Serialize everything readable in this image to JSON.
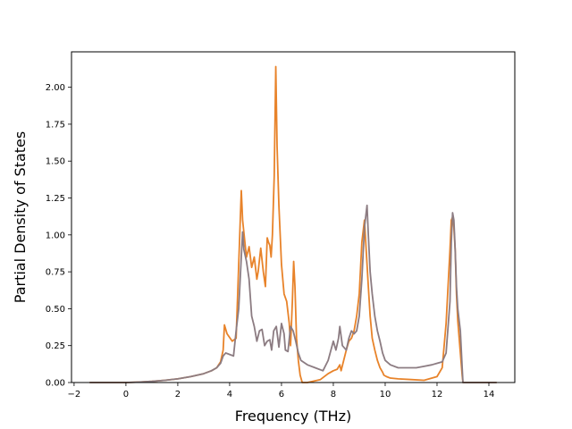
{
  "chart_data": {
    "type": "line",
    "title": "",
    "xlabel": "Frequency (THz)",
    "ylabel": "Partial Density of States",
    "xlim": [
      -2.1,
      15.0
    ],
    "ylim": [
      0.0,
      2.24
    ],
    "xticks": [
      -2,
      0,
      2,
      4,
      6,
      8,
      10,
      12,
      14
    ],
    "xtick_labels": [
      "−2",
      "0",
      "2",
      "4",
      "6",
      "8",
      "10",
      "12",
      "14"
    ],
    "yticks": [
      0.0,
      0.25,
      0.5,
      0.75,
      1.0,
      1.25,
      1.5,
      1.75,
      2.0
    ],
    "ytick_labels": [
      "0.00",
      "0.25",
      "0.50",
      "0.75",
      "1.00",
      "1.25",
      "1.50",
      "1.75",
      "2.00"
    ],
    "grid": false,
    "legend": false,
    "series": [
      {
        "color": "#e8832a",
        "x": [
          -1.4,
          0,
          0.5,
          1,
          1.5,
          2,
          2.5,
          3,
          3.3,
          3.5,
          3.65,
          3.75,
          3.8,
          3.9,
          4.1,
          4.25,
          4.35,
          4.45,
          4.5,
          4.6,
          4.65,
          4.75,
          4.85,
          4.95,
          5.05,
          5.1,
          5.2,
          5.3,
          5.38,
          5.45,
          5.5,
          5.55,
          5.6,
          5.65,
          5.72,
          5.78,
          5.83,
          5.9,
          6.0,
          6.1,
          6.2,
          6.3,
          6.35,
          6.42,
          6.47,
          6.52,
          6.58,
          6.65,
          6.72,
          6.8,
          7.0,
          7.5,
          7.8,
          8.0,
          8.15,
          8.25,
          8.3,
          8.4,
          8.5,
          8.6,
          8.7,
          8.8,
          8.9,
          9.0,
          9.1,
          9.2,
          9.3,
          9.35,
          9.42,
          9.5,
          9.6,
          9.7,
          9.8,
          9.9,
          9.95,
          10.05,
          10.2,
          10.5,
          11,
          11.5,
          12,
          12.2,
          12.35,
          12.5,
          12.55,
          12.6,
          12.65,
          12.7,
          12.75,
          12.8,
          12.9,
          12.97,
          13.0,
          13.1,
          14.3
        ],
        "y": [
          0,
          0.0,
          0.003,
          0.008,
          0.015,
          0.025,
          0.04,
          0.06,
          0.08,
          0.1,
          0.14,
          0.22,
          0.39,
          0.33,
          0.28,
          0.3,
          0.8,
          1.3,
          1.1,
          0.93,
          0.85,
          0.92,
          0.78,
          0.85,
          0.7,
          0.75,
          0.91,
          0.75,
          0.65,
          0.98,
          0.95,
          0.93,
          0.85,
          1.0,
          1.4,
          2.14,
          1.6,
          1.2,
          0.8,
          0.6,
          0.55,
          0.4,
          0.25,
          0.55,
          0.82,
          0.65,
          0.3,
          0.15,
          0.05,
          0.0,
          0.0,
          0.02,
          0.06,
          0.08,
          0.09,
          0.12,
          0.08,
          0.15,
          0.22,
          0.28,
          0.3,
          0.35,
          0.45,
          0.6,
          0.95,
          1.1,
          0.8,
          0.65,
          0.45,
          0.3,
          0.22,
          0.15,
          0.1,
          0.07,
          0.05,
          0.04,
          0.03,
          0.025,
          0.02,
          0.015,
          0.04,
          0.1,
          0.4,
          0.9,
          1.1,
          1.12,
          1.05,
          0.9,
          0.6,
          0.42,
          0.2,
          0.05,
          0.0,
          0.0,
          0.0
        ]
      },
      {
        "color": "#8c7c82",
        "x": [
          -1.4,
          0,
          0.5,
          1,
          1.5,
          2,
          2.5,
          3,
          3.3,
          3.5,
          3.65,
          3.75,
          3.85,
          4.0,
          4.15,
          4.25,
          4.35,
          4.45,
          4.5,
          4.55,
          4.65,
          4.75,
          4.85,
          4.95,
          5.05,
          5.15,
          5.25,
          5.35,
          5.45,
          5.55,
          5.62,
          5.7,
          5.8,
          5.9,
          6.0,
          6.1,
          6.15,
          6.25,
          6.35,
          6.45,
          6.55,
          6.65,
          6.75,
          7.0,
          7.3,
          7.6,
          7.8,
          8.0,
          8.1,
          8.2,
          8.25,
          8.35,
          8.5,
          8.6,
          8.7,
          8.8,
          8.9,
          9.0,
          9.1,
          9.2,
          9.3,
          9.35,
          9.42,
          9.5,
          9.6,
          9.7,
          9.8,
          9.9,
          10.0,
          10.2,
          10.5,
          11,
          11.2,
          11.5,
          11.8,
          12.0,
          12.2,
          12.35,
          12.5,
          12.55,
          12.6,
          12.65,
          12.7,
          12.75,
          12.8,
          12.9,
          12.97,
          13.0,
          13.1,
          14.3
        ],
        "y": [
          0,
          0.0,
          0.003,
          0.008,
          0.015,
          0.025,
          0.04,
          0.06,
          0.08,
          0.1,
          0.13,
          0.18,
          0.2,
          0.19,
          0.18,
          0.35,
          0.5,
          0.85,
          1.02,
          0.9,
          0.82,
          0.7,
          0.45,
          0.38,
          0.28,
          0.35,
          0.36,
          0.25,
          0.28,
          0.29,
          0.22,
          0.35,
          0.38,
          0.24,
          0.4,
          0.33,
          0.22,
          0.21,
          0.38,
          0.35,
          0.28,
          0.2,
          0.15,
          0.12,
          0.1,
          0.08,
          0.15,
          0.28,
          0.22,
          0.3,
          0.38,
          0.25,
          0.22,
          0.3,
          0.35,
          0.33,
          0.35,
          0.45,
          0.7,
          1.05,
          1.2,
          1.0,
          0.75,
          0.6,
          0.45,
          0.35,
          0.28,
          0.2,
          0.15,
          0.12,
          0.1,
          0.1,
          0.1,
          0.11,
          0.12,
          0.13,
          0.14,
          0.2,
          0.55,
          0.95,
          1.15,
          1.1,
          0.9,
          0.65,
          0.5,
          0.35,
          0.1,
          0.0,
          0.0,
          0.0
        ]
      }
    ]
  }
}
